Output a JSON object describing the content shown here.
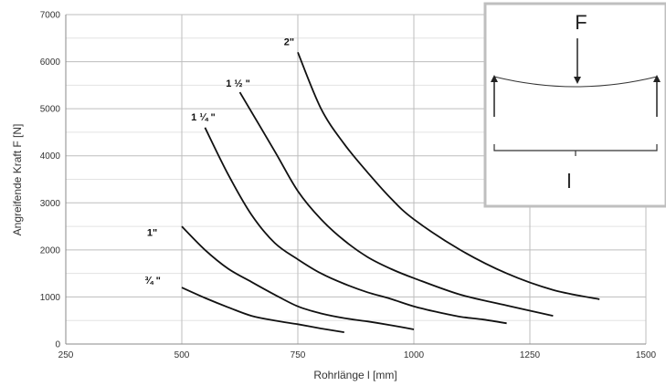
{
  "chart_data": {
    "type": "line",
    "title": "",
    "xlabel": "Rohrlänge l [mm]",
    "ylabel": "Angreifende Kraft F [N]",
    "xlim": [
      250,
      1500
    ],
    "ylim": [
      0,
      7000
    ],
    "x_ticks": [
      250,
      500,
      750,
      1000,
      1250,
      1500
    ],
    "y_ticks": [
      0,
      1000,
      2000,
      3000,
      4000,
      5000,
      6000,
      7000
    ],
    "x_tick_labels": [
      "250",
      "500",
      "750",
      "1000",
      "1250",
      "1500"
    ],
    "y_tick_labels": [
      "0",
      "1000",
      "2000",
      "3000",
      "4000",
      "5000",
      "6000",
      "7000"
    ],
    "grid": true,
    "series": [
      {
        "name": "¾ \"",
        "color": "#111111",
        "x": [
          500,
          550,
          600,
          650,
          700,
          750,
          800,
          850
        ],
        "y": [
          1200,
          980,
          780,
          600,
          500,
          420,
          330,
          250
        ]
      },
      {
        "name": "1\"",
        "color": "#111111",
        "x": [
          500,
          550,
          600,
          650,
          700,
          750,
          800,
          850,
          900,
          950,
          1000
        ],
        "y": [
          2500,
          2000,
          1600,
          1320,
          1050,
          800,
          650,
          550,
          480,
          400,
          310
        ]
      },
      {
        "name": "1 ¼ \"",
        "color": "#111111",
        "x": [
          550,
          600,
          650,
          700,
          750,
          800,
          850,
          900,
          950,
          1000,
          1050,
          1100,
          1150,
          1200
        ],
        "y": [
          4600,
          3600,
          2750,
          2150,
          1800,
          1500,
          1280,
          1100,
          960,
          800,
          680,
          580,
          520,
          440
        ]
      },
      {
        "name": "1 ½ \"",
        "color": "#111111",
        "x": [
          625,
          700,
          750,
          800,
          850,
          900,
          950,
          1000,
          1100,
          1200,
          1300
        ],
        "y": [
          5350,
          4100,
          3250,
          2650,
          2200,
          1850,
          1600,
          1400,
          1050,
          820,
          600
        ]
      },
      {
        "name": "2\"",
        "color": "#111111",
        "x": [
          750,
          800,
          850,
          900,
          950,
          1000,
          1100,
          1200,
          1300,
          1400
        ],
        "y": [
          6200,
          5000,
          4250,
          3650,
          3100,
          2650,
          2000,
          1500,
          1150,
          950
        ]
      }
    ],
    "annotations": [
      {
        "text": "2\"",
        "at_x": 720,
        "at_y": 6350
      },
      {
        "text": "1 ½ \"",
        "at_x": 595,
        "at_y": 5470
      },
      {
        "text": "1 ¼ \"",
        "at_x": 520,
        "at_y": 4750
      },
      {
        "text": "1\"",
        "at_x": 425,
        "at_y": 2300
      },
      {
        "text": "¾ \"",
        "at_x": 420,
        "at_y": 1280
      }
    ],
    "inset": {
      "force_label": "F",
      "length_label": "l"
    }
  }
}
